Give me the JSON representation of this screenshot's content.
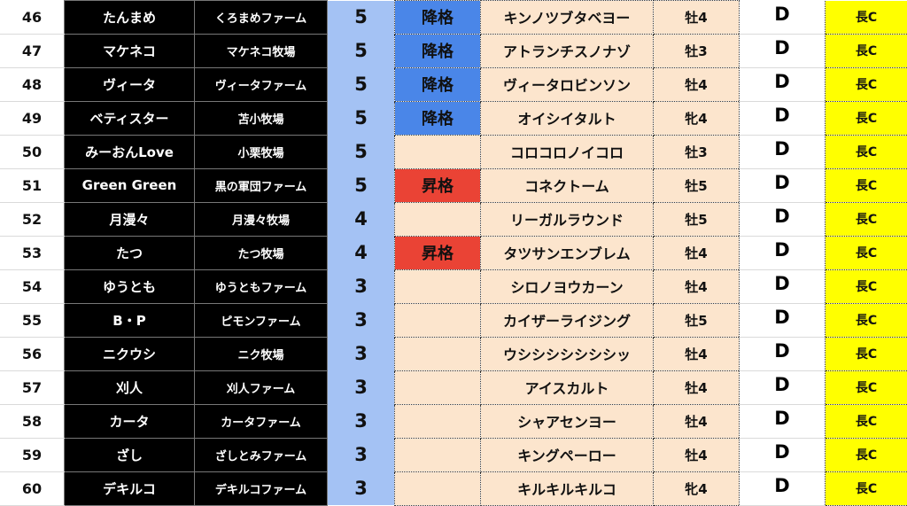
{
  "colors": {
    "rank_bg": "#a4c2f4",
    "demote": "#4a86e8",
    "promote": "#ea4335",
    "horse_bg": "#fce5cd",
    "aptitude_bg": "#ffff00",
    "owner_bg": "#000000"
  },
  "rows": [
    {
      "no": "46",
      "owner": "たんまめ",
      "farm": "くろまめファーム",
      "rank": "5",
      "status": "降格",
      "status_type": "down",
      "horse": "キンノツブタベヨー",
      "sex_age": "牡4",
      "grade": "D",
      "aptitude": "長C"
    },
    {
      "no": "47",
      "owner": "マケネコ",
      "farm": "マケネコ牧場",
      "rank": "5",
      "status": "降格",
      "status_type": "down",
      "horse": "アトランチスノナゾ",
      "sex_age": "牡3",
      "grade": "D",
      "aptitude": "長C"
    },
    {
      "no": "48",
      "owner": "ヴィータ",
      "farm": "ヴィータファーム",
      "rank": "5",
      "status": "降格",
      "status_type": "down",
      "horse": "ヴィータロビンソン",
      "sex_age": "牡4",
      "grade": "D",
      "aptitude": "長C"
    },
    {
      "no": "49",
      "owner": "ベティスター",
      "farm": "苫小牧場",
      "rank": "5",
      "status": "降格",
      "status_type": "down",
      "horse": "オイシイタルト",
      "sex_age": "牝4",
      "grade": "D",
      "aptitude": "長C"
    },
    {
      "no": "50",
      "owner": "みーおんLove",
      "farm": "小栗牧場",
      "rank": "5",
      "status": "",
      "status_type": "",
      "horse": "コロコロノイコロ",
      "sex_age": "牡3",
      "grade": "D",
      "aptitude": "長C"
    },
    {
      "no": "51",
      "owner": "Green Green",
      "farm": "黒の軍団ファーム",
      "rank": "5",
      "status": "昇格",
      "status_type": "up",
      "horse": "コネクトーム",
      "sex_age": "牡5",
      "grade": "D",
      "aptitude": "長C"
    },
    {
      "no": "52",
      "owner": "月漫々",
      "farm": "月漫々牧場",
      "rank": "4",
      "status": "",
      "status_type": "",
      "horse": "リーガルラウンド",
      "sex_age": "牡5",
      "grade": "D",
      "aptitude": "長C"
    },
    {
      "no": "53",
      "owner": "たつ",
      "farm": "たつ牧場",
      "rank": "4",
      "status": "昇格",
      "status_type": "up",
      "horse": "タツサンエンブレム",
      "sex_age": "牡4",
      "grade": "D",
      "aptitude": "長C"
    },
    {
      "no": "54",
      "owner": "ゆうとも",
      "farm": "ゆうともファーム",
      "rank": "3",
      "status": "",
      "status_type": "",
      "horse": "シロノヨウカーン",
      "sex_age": "牡4",
      "grade": "D",
      "aptitude": "長C"
    },
    {
      "no": "55",
      "owner": "B・P",
      "farm": "ピモンファーム",
      "rank": "3",
      "status": "",
      "status_type": "",
      "horse": "カイザーライジング",
      "sex_age": "牡5",
      "grade": "D",
      "aptitude": "長C"
    },
    {
      "no": "56",
      "owner": "ニクウシ",
      "farm": "ニク牧場",
      "rank": "3",
      "status": "",
      "status_type": "",
      "horse": "ウシシシシシシシッ",
      "sex_age": "牡4",
      "grade": "D",
      "aptitude": "長C"
    },
    {
      "no": "57",
      "owner": "刈人",
      "farm": "刈人ファーム",
      "rank": "3",
      "status": "",
      "status_type": "",
      "horse": "アイスカルト",
      "sex_age": "牡4",
      "grade": "D",
      "aptitude": "長C"
    },
    {
      "no": "58",
      "owner": "カータ",
      "farm": "カータファーム",
      "rank": "3",
      "status": "",
      "status_type": "",
      "horse": "シャアセンヨー",
      "sex_age": "牡4",
      "grade": "D",
      "aptitude": "長C"
    },
    {
      "no": "59",
      "owner": "ざし",
      "farm": "ざしとみファーム",
      "rank": "3",
      "status": "",
      "status_type": "",
      "horse": "キングペーロー",
      "sex_age": "牡4",
      "grade": "D",
      "aptitude": "長C"
    },
    {
      "no": "60",
      "owner": "デキルコ",
      "farm": "デキルコファーム",
      "rank": "3",
      "status": "",
      "status_type": "",
      "horse": "キルキルキルコ",
      "sex_age": "牝4",
      "grade": "D",
      "aptitude": "長C"
    }
  ]
}
